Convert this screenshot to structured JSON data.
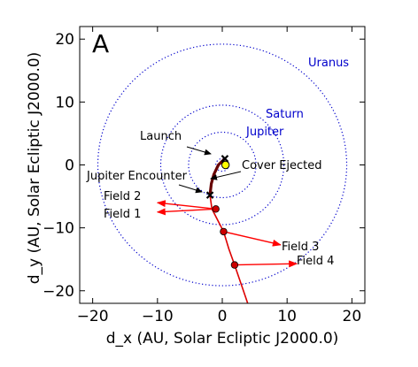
{
  "chart_data": {
    "type": "scatter",
    "panel_label": "A",
    "xlabel": "d_x (AU, Solar Ecliptic J2000.0)",
    "ylabel": "d_y (AU, Solar Ecliptic J2000.0)",
    "xlim": [
      -22,
      22
    ],
    "ylim": [
      -22,
      22
    ],
    "xticks": [
      -20,
      -10,
      0,
      10,
      20
    ],
    "yticks": [
      20,
      10,
      0,
      -10,
      -20
    ],
    "grid": false,
    "orbits": [
      {
        "name": "Jupiter",
        "radius": 5.2,
        "label_color": "#0000cc",
        "line_color": "#0000cc"
      },
      {
        "name": "Saturn",
        "radius": 9.5,
        "label_color": "#0000cc",
        "line_color": "#0000cc"
      },
      {
        "name": "Uranus",
        "radius": 19.2,
        "label_color": "#0000cc",
        "line_color": "#0000cc"
      }
    ],
    "inner_orbit_radius": 1.0,
    "sun": {
      "x": 0.5,
      "y": 0,
      "color": "#ffff00"
    },
    "early_trajectory": [
      {
        "x": 0.4,
        "y": 1.0
      },
      {
        "x": -0.6,
        "y": 0.0
      },
      {
        "x": -1.3,
        "y": -1.5
      },
      {
        "x": -1.7,
        "y": -3.0
      },
      {
        "x": -1.9,
        "y": -4.8
      }
    ],
    "trajectory": [
      {
        "x": -1.9,
        "y": -4.8
      },
      {
        "x": -1.6,
        "y": -7.0
      },
      {
        "x": -0.6,
        "y": -9.0
      },
      {
        "x": 0.2,
        "y": -10.6
      },
      {
        "x": 1.0,
        "y": -13.3
      },
      {
        "x": 1.9,
        "y": -15.9
      },
      {
        "x": 3.6,
        "y": -21.0
      },
      {
        "x": 4.9,
        "y": -25.0
      }
    ],
    "field_points": [
      {
        "name": "Field 2",
        "x": -1.0,
        "y": -7.0,
        "arrow_to": {
          "x": -10.0,
          "y": -6.0
        }
      },
      {
        "name": "Field 1",
        "x": -1.0,
        "y": -7.0,
        "arrow_to": {
          "x": -10.0,
          "y": -7.5
        }
      },
      {
        "name": "Field 3",
        "x": 0.2,
        "y": -10.6,
        "arrow_to": {
          "x": 9.0,
          "y": -12.7
        }
      },
      {
        "name": "Field 4",
        "x": 1.9,
        "y": -15.9,
        "arrow_to": {
          "x": 11.5,
          "y": -15.7
        }
      }
    ],
    "markers": [
      {
        "name": "Launch",
        "x": 0.4,
        "y": 1.0
      },
      {
        "name": "Jupiter Encounter",
        "x": -1.9,
        "y": -4.8
      }
    ],
    "annotations": [
      {
        "text": "Launch",
        "anchor": "Launch"
      },
      {
        "text": "Jupiter Encounter",
        "anchor": "Jupiter Encounter"
      },
      {
        "text": "Cover Ejected",
        "anchor": "trajectory"
      }
    ],
    "colors": {
      "orbit": "#0000cc",
      "trajectory": "#dd0000",
      "early_trajectory": "#660000",
      "field_arrow": "#ff0000",
      "field_point": "#cc0000",
      "marker": "#000000"
    }
  }
}
